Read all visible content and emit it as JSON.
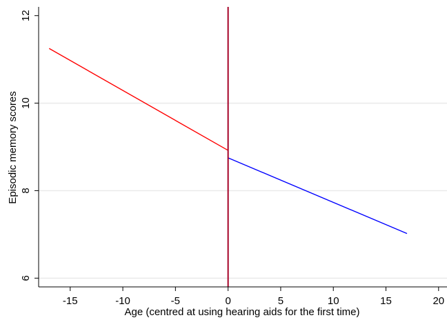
{
  "chart_data": {
    "type": "line",
    "xlabel": "Age (centred at using hearing aids for the first time)",
    "ylabel": "Episodic memory scores",
    "xlim": [
      -18,
      20.8
    ],
    "ylim": [
      5.8,
      12.2
    ],
    "x_ticks": [
      -15,
      -10,
      -5,
      0,
      5,
      10,
      15,
      20
    ],
    "y_ticks": [
      6,
      8,
      10,
      12
    ],
    "grid": "horizontal",
    "legend": "none",
    "series": [
      {
        "color": "#ff0000",
        "points": [
          [
            -17,
            11.25
          ],
          [
            0,
            8.92
          ]
        ]
      },
      {
        "color": "#0000ff",
        "points": [
          [
            0,
            8.75
          ],
          [
            17,
            7.02
          ]
        ]
      }
    ],
    "vline": {
      "x": 0,
      "color": "#a50026"
    }
  }
}
